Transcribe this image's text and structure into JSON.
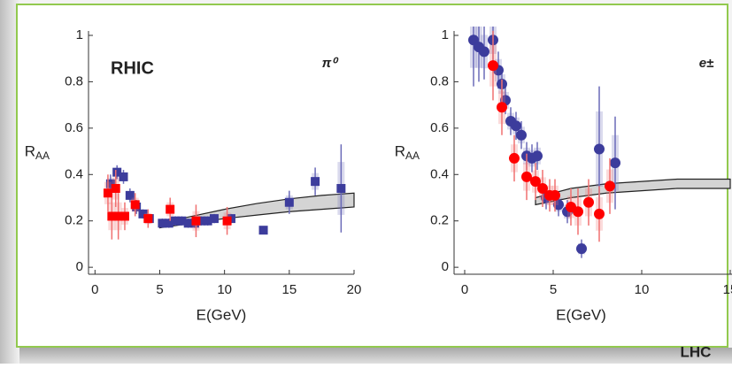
{
  "chart_data": [
    {
      "type": "scatter",
      "annotation": "RHIC",
      "particle": "π⁰",
      "xlabel": "E(GeV)",
      "ylabel": "R",
      "ylabel_subscript": "AA",
      "xlim": [
        -0.5,
        20
      ],
      "ylim": [
        -0.03,
        1.0
      ],
      "xticks": [
        0,
        5,
        10,
        15,
        20
      ],
      "yticks": [
        0,
        0.2,
        0.4,
        0.6,
        0.8,
        1
      ],
      "band": {
        "color": "#d4d4d4",
        "x": [
          5,
          7.5,
          10,
          12.5,
          15,
          17.5,
          20
        ],
        "lower": [
          0.17,
          0.19,
          0.21,
          0.225,
          0.24,
          0.25,
          0.26
        ],
        "upper": [
          0.19,
          0.22,
          0.25,
          0.275,
          0.295,
          0.31,
          0.32
        ]
      },
      "series": [
        {
          "marker": "square",
          "color": "#3c3c9c",
          "error_color": "#6a6ab8",
          "x": [
            1.2,
            1.7,
            2.2,
            2.7,
            3.2,
            3.7,
            4.2,
            5.2,
            5.7,
            6.2,
            6.7,
            7.2,
            7.7,
            8.2,
            8.7,
            9.2,
            10.5,
            13,
            15,
            17,
            19
          ],
          "values": [
            0.36,
            0.41,
            0.39,
            0.31,
            0.26,
            0.23,
            0.21,
            0.19,
            0.19,
            0.2,
            0.2,
            0.19,
            0.19,
            0.2,
            0.2,
            0.21,
            0.21,
            0.16,
            0.28,
            0.37,
            0.34
          ],
          "errors": [
            0.04,
            0.03,
            0.03,
            0.03,
            0.03,
            0.02,
            0.02,
            0.02,
            0.02,
            0.02,
            0.02,
            0.02,
            0.02,
            0.02,
            0.02,
            0.02,
            0.02,
            0.01,
            0.05,
            0.06,
            0.19
          ]
        },
        {
          "marker": "square",
          "color": "#ff0000",
          "error_color": "#f07070",
          "x": [
            1,
            1.3,
            1.6,
            1.8,
            2.3,
            3.1,
            4.1,
            5.8,
            7.8,
            10.2
          ],
          "values": [
            0.32,
            0.22,
            0.34,
            0.22,
            0.22,
            0.27,
            0.21,
            0.25,
            0.2,
            0.2
          ],
          "errors": [
            0.08,
            0.1,
            0.08,
            0.1,
            0.06,
            0.05,
            0.04,
            0.05,
            0.07,
            0.06
          ]
        }
      ]
    },
    {
      "type": "scatter",
      "particle": "e±",
      "xlabel": "E(GeV)",
      "ylabel": "R",
      "ylabel_subscript": "AA",
      "xlim": [
        -0.6,
        15.1
      ],
      "ylim": [
        -0.03,
        1.0
      ],
      "xticks": [
        0,
        5,
        10,
        15
      ],
      "yticks": [
        0,
        0.2,
        0.4,
        0.6,
        0.8,
        1
      ],
      "band": {
        "color": "#d4d4d4",
        "x": [
          4,
          6,
          8,
          10,
          12,
          15
        ],
        "lower": [
          0.27,
          0.3,
          0.32,
          0.33,
          0.34,
          0.34
        ],
        "upper": [
          0.3,
          0.34,
          0.36,
          0.37,
          0.38,
          0.38
        ]
      },
      "series": [
        {
          "marker": "circle",
          "color": "#3c3c9c",
          "error_color": "#6a6ab8",
          "x": [
            0.5,
            0.8,
            1.1,
            1.6,
            1.9,
            2.1,
            2.3,
            2.6,
            2.9,
            3.2,
            3.5,
            3.8,
            4.1,
            4.6,
            5.3,
            5.8,
            6.6,
            7.6,
            8.5
          ],
          "values": [
            0.98,
            0.95,
            0.93,
            0.98,
            0.85,
            0.79,
            0.72,
            0.63,
            0.61,
            0.57,
            0.48,
            0.47,
            0.48,
            0.3,
            0.27,
            0.24,
            0.08,
            0.51,
            0.45
          ],
          "errors": [
            0.2,
            0.15,
            0.12,
            0.1,
            0.08,
            0.07,
            0.06,
            0.06,
            0.06,
            0.06,
            0.06,
            0.06,
            0.06,
            0.05,
            0.05,
            0.05,
            0.04,
            0.27,
            0.2
          ]
        },
        {
          "marker": "circle",
          "color": "#ff0000",
          "error_color": "#f07070",
          "x": [
            1.6,
            2.1,
            2.8,
            3.5,
            4.0,
            4.4,
            4.8,
            5.1,
            6.0,
            6.4,
            7.0,
            7.6,
            8.2
          ],
          "values": [
            0.87,
            0.69,
            0.47,
            0.39,
            0.37,
            0.34,
            0.31,
            0.31,
            0.26,
            0.24,
            0.28,
            0.23,
            0.35
          ],
          "errors": [
            0.15,
            0.12,
            0.1,
            0.1,
            0.08,
            0.08,
            0.07,
            0.07,
            0.08,
            0.1,
            0.1,
            0.12,
            0.12
          ]
        }
      ]
    }
  ],
  "slide_label": "LHC"
}
